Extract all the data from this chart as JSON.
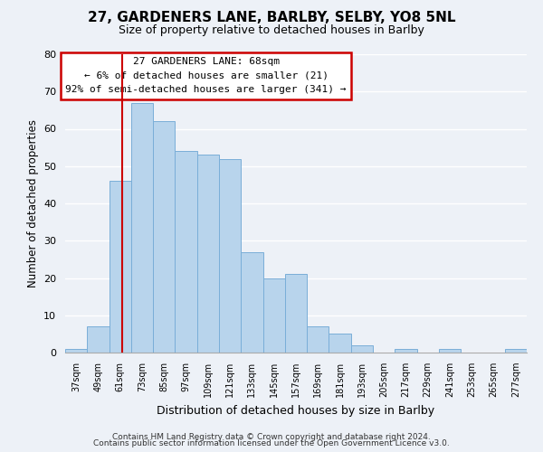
{
  "title": "27, GARDENERS LANE, BARLBY, SELBY, YO8 5NL",
  "subtitle": "Size of property relative to detached houses in Barlby",
  "xlabel": "Distribution of detached houses by size in Barlby",
  "ylabel": "Number of detached properties",
  "bar_labels": [
    "37sqm",
    "49sqm",
    "61sqm",
    "73sqm",
    "85sqm",
    "97sqm",
    "109sqm",
    "121sqm",
    "133sqm",
    "145sqm",
    "157sqm",
    "169sqm",
    "181sqm",
    "193sqm",
    "205sqm",
    "217sqm",
    "229sqm",
    "241sqm",
    "253sqm",
    "265sqm",
    "277sqm"
  ],
  "bar_values": [
    1,
    7,
    46,
    67,
    62,
    54,
    53,
    52,
    27,
    20,
    21,
    7,
    5,
    2,
    0,
    1,
    0,
    1,
    0,
    0,
    1
  ],
  "bar_color": "#b8d4ec",
  "bar_edge_color": "#7aaed8",
  "annotation_line1": "27 GARDENERS LANE: 68sqm",
  "annotation_line2": "← 6% of detached houses are smaller (21)",
  "annotation_line3": "92% of semi-detached houses are larger (341) →",
  "annotation_box_edge_color": "#cc0000",
  "annotation_box_face_color": "#ffffff",
  "vline_x": 68,
  "vline_color": "#cc0000",
  "ylim": [
    0,
    80
  ],
  "yticks": [
    0,
    10,
    20,
    30,
    40,
    50,
    60,
    70,
    80
  ],
  "footer_line1": "Contains HM Land Registry data © Crown copyright and database right 2024.",
  "footer_line2": "Contains public sector information licensed under the Open Government Licence v3.0.",
  "background_color": "#edf1f7",
  "grid_color": "#ffffff",
  "bin_width": 12
}
